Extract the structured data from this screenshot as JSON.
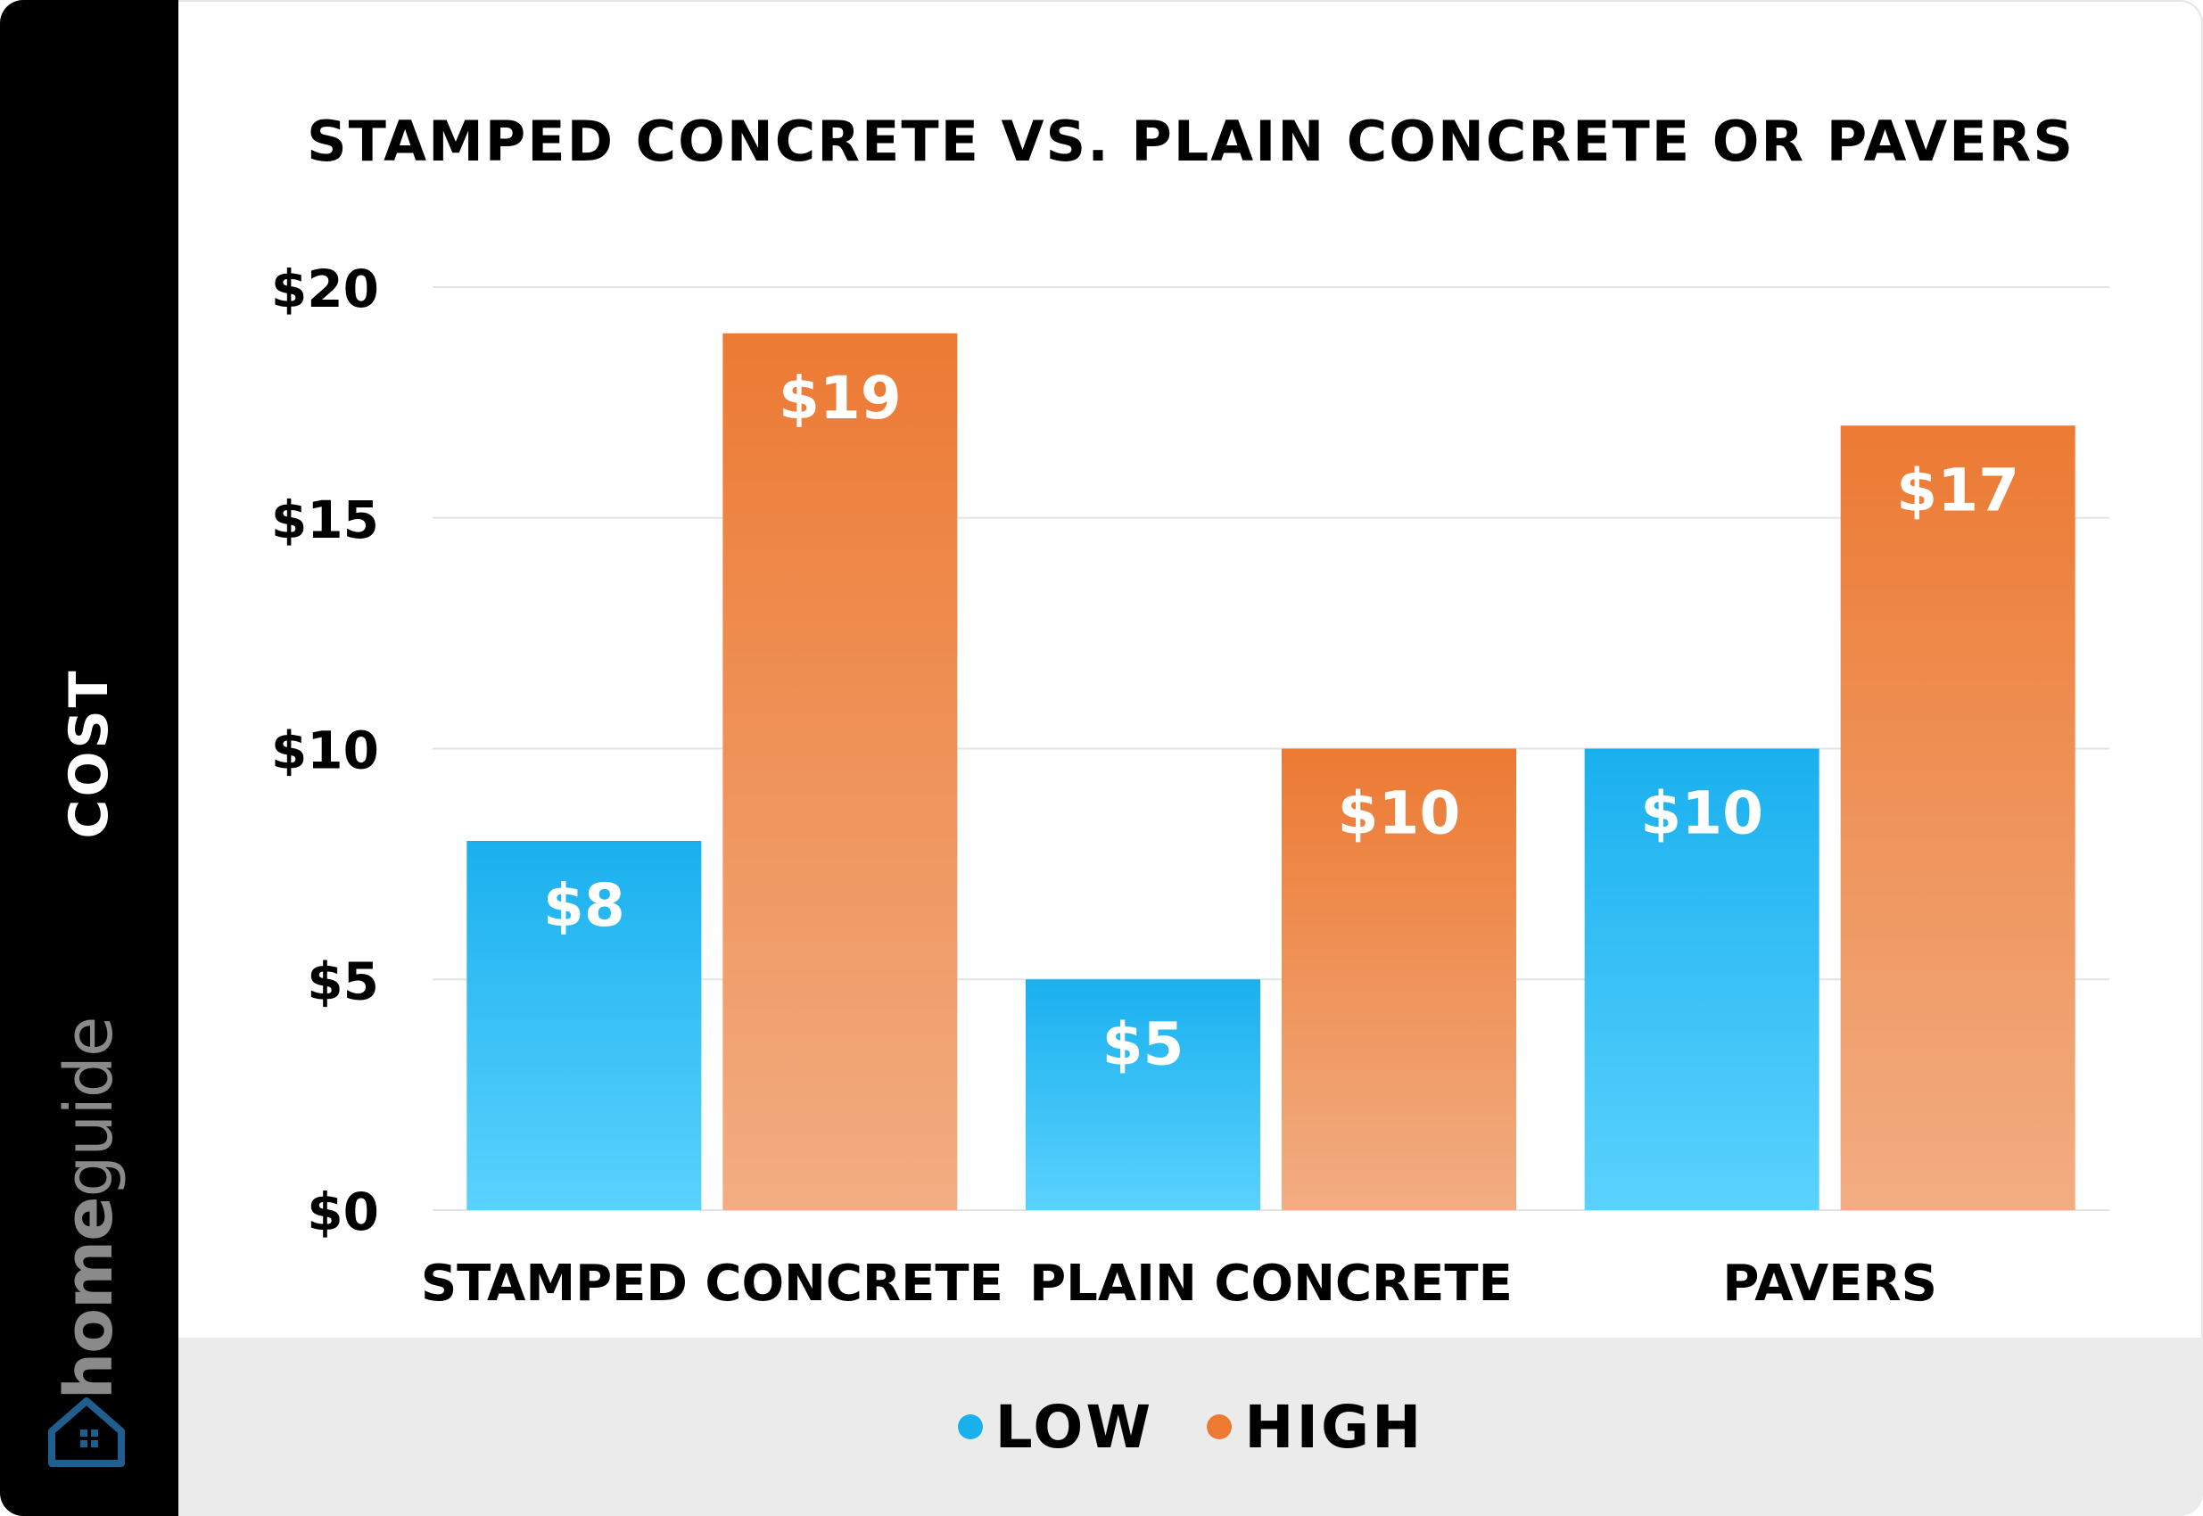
{
  "sidebar": {
    "axis_label": "COST",
    "brand_home": "home",
    "brand_guide": "guide",
    "logo_icon": "house-logo-icon"
  },
  "colors": {
    "low": "#1ab0ee",
    "low_light": "#5ad2fe",
    "high": "#ec7a33",
    "high_light": "#f2ad82",
    "sidebar": "#000000",
    "legend_bg": "#ebebeb",
    "grid": "#e3e3e3"
  },
  "legend": {
    "low_label": "LOW",
    "high_label": "HIGH",
    "placement": "bottom"
  },
  "chart_data": {
    "type": "bar",
    "title": "STAMPED CONCRETE VS. PLAIN CONCRETE OR PAVERS",
    "ylabel": "COST",
    "xlabel": "",
    "categories": [
      "STAMPED CONCRETE",
      "PLAIN CONCRETE",
      "PAVERS"
    ],
    "series": [
      {
        "name": "LOW",
        "values": [
          8,
          5,
          10
        ],
        "labels": [
          "$8",
          "$5",
          "$10"
        ]
      },
      {
        "name": "HIGH",
        "values": [
          19,
          10,
          17
        ],
        "labels": [
          "$19",
          "$10",
          "$17"
        ]
      }
    ],
    "ylim": [
      0,
      20
    ],
    "yticks": [
      0,
      5,
      10,
      15,
      20
    ],
    "ytick_labels": [
      "$0",
      "$5",
      "$10",
      "$15",
      "$20"
    ],
    "grid": true
  }
}
